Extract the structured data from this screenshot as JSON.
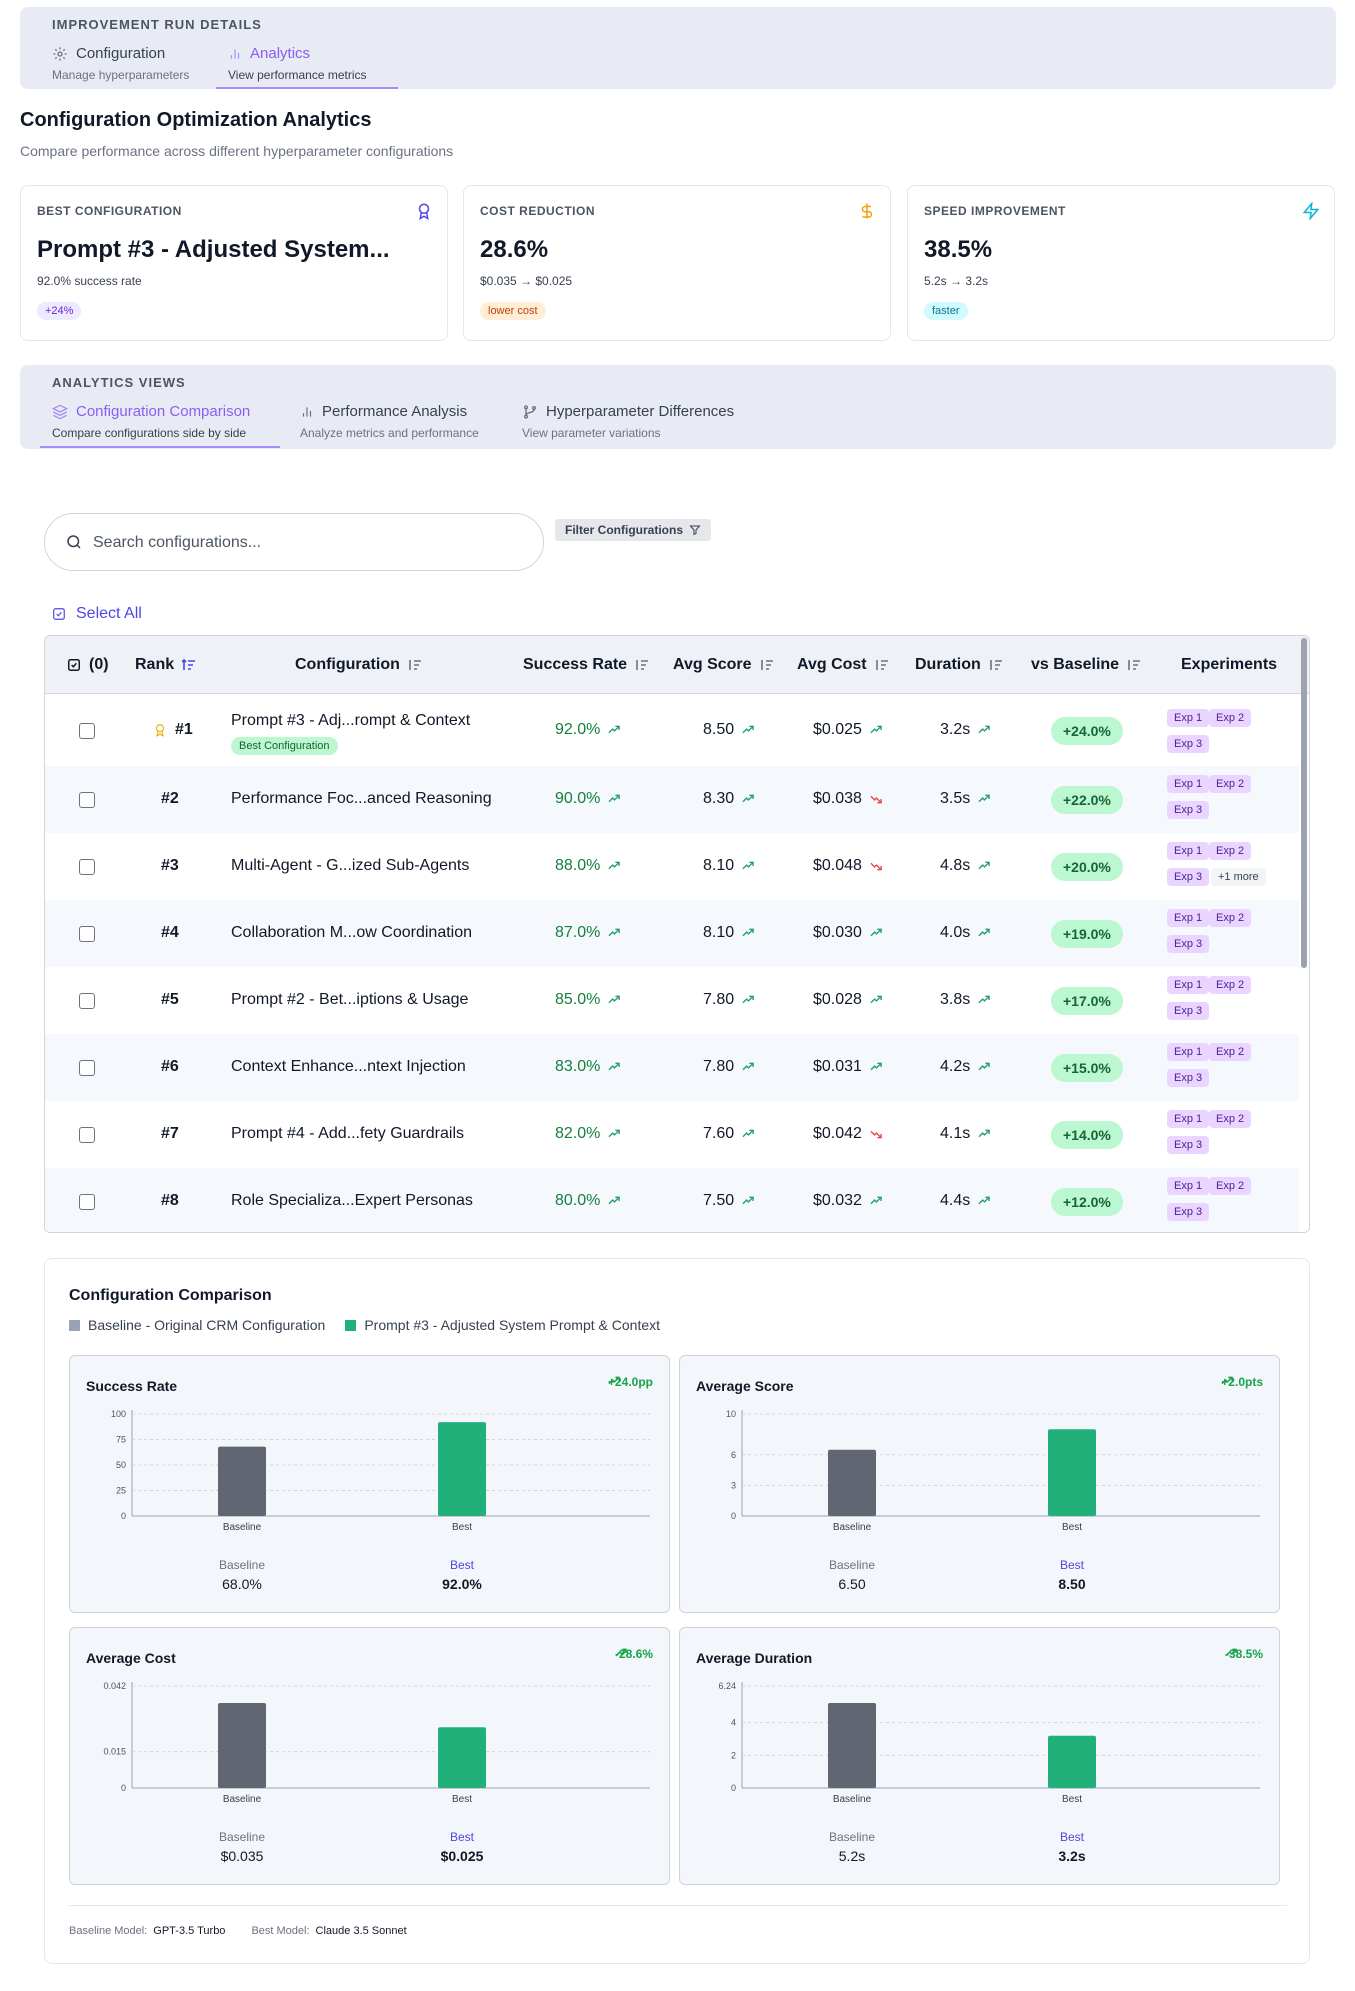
{
  "header": {
    "section_label": "IMPROVEMENT RUN DETAILS",
    "tabs": [
      {
        "label": "Configuration",
        "sub": "Manage hyperparameters",
        "icon": "gear-icon"
      },
      {
        "label": "Analytics",
        "sub": "View performance metrics",
        "icon": "bar-chart-icon",
        "active": true
      }
    ]
  },
  "page": {
    "title": "Configuration Optimization Analytics",
    "subtitle": "Compare performance across different hyperparameter configurations"
  },
  "cards": [
    {
      "label": "BEST CONFIGURATION",
      "value": "Prompt #3 - Adjusted System...",
      "sub": "92.0% success rate",
      "pill": "+24%",
      "icon": "award-icon"
    },
    {
      "label": "COST REDUCTION",
      "value": "28.6%",
      "sub": "$0.035 → $0.025",
      "pill": "lower cost",
      "icon": "dollar-icon"
    },
    {
      "label": "SPEED IMPROVEMENT",
      "value": "38.5%",
      "sub": "5.2s → 3.2s",
      "pill": "faster",
      "icon": "lightning-icon"
    }
  ],
  "views": {
    "section_label": "ANALYTICS VIEWS",
    "tabs": [
      {
        "label": "Configuration Comparison",
        "sub": "Compare configurations side by side",
        "icon": "layers-icon",
        "active": true
      },
      {
        "label": "Performance Analysis",
        "sub": "Analyze metrics and performance",
        "icon": "bar-chart-icon"
      },
      {
        "label": "Hyperparameter Differences",
        "sub": "View parameter variations",
        "icon": "branch-icon"
      }
    ]
  },
  "search": {
    "placeholder": "Search configurations..."
  },
  "filter": {
    "label": "Filter Configurations"
  },
  "select_all": {
    "label": "Select All"
  },
  "table": {
    "headers": {
      "select": "(0)",
      "rank": "Rank",
      "config": "Configuration",
      "success": "Success Rate",
      "score": "Avg Score",
      "cost": "Avg Cost",
      "duration": "Duration",
      "baseline": "vs Baseline",
      "experiments": "Experiments"
    },
    "best_badge": "Best Configuration",
    "rows": [
      {
        "rank": "#1",
        "name": "Prompt #3 - Adj...rompt & Context",
        "success": "92.0%",
        "score": "8.50",
        "cost": "$0.025",
        "cost_trend": "up",
        "duration": "3.2s",
        "baseline": "+24.0%",
        "exps": [
          "Exp 1",
          "Exp 2",
          "Exp 3"
        ],
        "best": true
      },
      {
        "rank": "#2",
        "name": "Performance Foc...anced Reasoning",
        "success": "90.0%",
        "score": "8.30",
        "cost": "$0.038",
        "cost_trend": "down",
        "duration": "3.5s",
        "baseline": "+22.0%",
        "exps": [
          "Exp 1",
          "Exp 2",
          "Exp 3"
        ]
      },
      {
        "rank": "#3",
        "name": "Multi-Agent - G...ized Sub-Agents",
        "success": "88.0%",
        "score": "8.10",
        "cost": "$0.048",
        "cost_trend": "down",
        "duration": "4.8s",
        "baseline": "+20.0%",
        "exps": [
          "Exp 1",
          "Exp 2",
          "Exp 3"
        ],
        "more": "+1 more"
      },
      {
        "rank": "#4",
        "name": "Collaboration M...ow Coordination",
        "success": "87.0%",
        "score": "8.10",
        "cost": "$0.030",
        "cost_trend": "up",
        "duration": "4.0s",
        "baseline": "+19.0%",
        "exps": [
          "Exp 1",
          "Exp 2",
          "Exp 3"
        ]
      },
      {
        "rank": "#5",
        "name": "Prompt #2 - Bet...iptions & Usage",
        "success": "85.0%",
        "score": "7.80",
        "cost": "$0.028",
        "cost_trend": "up",
        "duration": "3.8s",
        "baseline": "+17.0%",
        "exps": [
          "Exp 1",
          "Exp 2",
          "Exp 3"
        ]
      },
      {
        "rank": "#6",
        "name": "Context Enhance...ntext Injection",
        "success": "83.0%",
        "score": "7.80",
        "cost": "$0.031",
        "cost_trend": "up",
        "duration": "4.2s",
        "baseline": "+15.0%",
        "exps": [
          "Exp 1",
          "Exp 2",
          "Exp 3"
        ]
      },
      {
        "rank": "#7",
        "name": "Prompt #4 - Add...fety Guardrails",
        "success": "82.0%",
        "score": "7.60",
        "cost": "$0.042",
        "cost_trend": "down",
        "duration": "4.1s",
        "baseline": "+14.0%",
        "exps": [
          "Exp 1",
          "Exp 2",
          "Exp 3"
        ]
      },
      {
        "rank": "#8",
        "name": "Role Speciali​za...Expert Personas",
        "success": "80.0%",
        "score": "7.50",
        "cost": "$0.032",
        "cost_trend": "up",
        "duration": "4.4s",
        "baseline": "+12.0%",
        "exps": [
          "Exp 1",
          "Exp 2",
          "Exp 3"
        ]
      }
    ]
  },
  "comparison": {
    "title": "Configuration Comparison",
    "legend_baseline": "Baseline - Original CRM Configuration",
    "legend_best": "Prompt #3 - Adjusted System Prompt & Context",
    "colors": {
      "baseline": "#606672",
      "best": "#22b07a",
      "baseline_legend": "#9aa3b5",
      "best_legend": "#22b07a"
    },
    "footer": {
      "baseline_label": "Baseline Model:",
      "baseline_model": "GPT-3.5 Turbo",
      "best_label": "Best Model:",
      "best_model": "Claude 3.5 Sonnet"
    }
  },
  "chart_data": [
    {
      "type": "bar",
      "title": "Success Rate",
      "delta": "+24.0pp",
      "categories": [
        "Baseline",
        "Best"
      ],
      "values": [
        68,
        92
      ],
      "ylim": [
        0,
        100
      ],
      "ticks": [
        "0",
        "25",
        "50",
        "75",
        "100"
      ],
      "tick_values": [
        0,
        25,
        50,
        75,
        100
      ],
      "summary": [
        "68.0%",
        "92.0%"
      ]
    },
    {
      "type": "bar",
      "title": "Average Score",
      "delta": "+2.0pts",
      "categories": [
        "Baseline",
        "Best"
      ],
      "values": [
        6.5,
        8.5
      ],
      "ylim": [
        0,
        10
      ],
      "ticks": [
        "0",
        "3",
        "6",
        "10"
      ],
      "tick_values": [
        0,
        3,
        6,
        10
      ],
      "summary": [
        "6.50",
        "8.50"
      ]
    },
    {
      "type": "bar",
      "title": "Average Cost",
      "delta": "-28.6%",
      "categories": [
        "Baseline",
        "Best"
      ],
      "values": [
        0.035,
        0.025
      ],
      "ylim": [
        0,
        0.042
      ],
      "ticks": [
        "0",
        "0.015",
        "0.042"
      ],
      "tick_values": [
        0,
        0.015,
        0.042
      ],
      "summary": [
        "$0.035",
        "$0.025"
      ]
    },
    {
      "type": "bar",
      "title": "Average Duration",
      "delta": "-38.5%",
      "categories": [
        "Baseline",
        "Best"
      ],
      "values": [
        5.2,
        3.2
      ],
      "ylim": [
        0,
        6.24
      ],
      "ticks": [
        "0",
        "2",
        "4",
        "6.24"
      ],
      "tick_values": [
        0,
        2,
        4,
        6.24
      ],
      "summary": [
        "5.2s",
        "3.2s"
      ]
    }
  ],
  "summary_labels": {
    "baseline": "Baseline",
    "best": "Best"
  }
}
